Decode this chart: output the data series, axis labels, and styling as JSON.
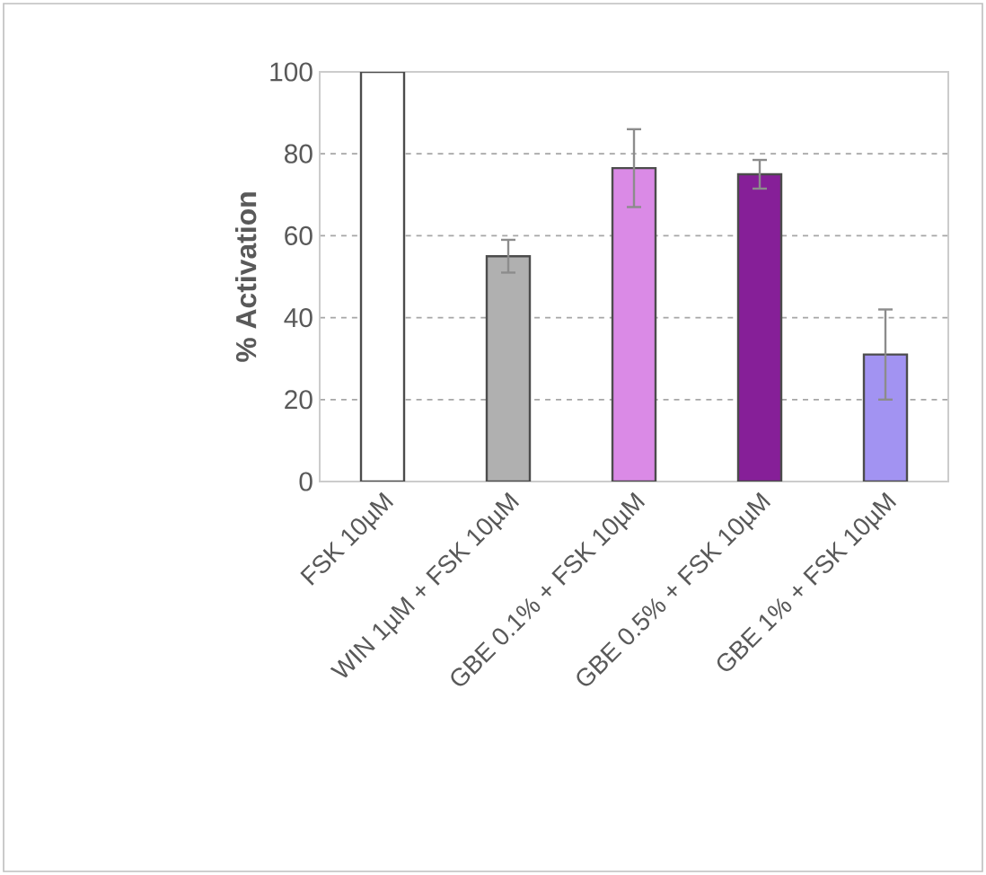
{
  "chart_data": {
    "type": "bar",
    "ylabel": "% Activation",
    "categories": [
      "FSK 10µM",
      "WIN 1µM + FSK 10µM",
      "GBE 0.1% + FSK 10µM",
      "GBE 0.5% + FSK 10µM",
      "GBE 1% + FSK 10µM"
    ],
    "values": [
      100,
      55,
      76.5,
      75,
      31
    ],
    "colors": [
      "#ffffff",
      "#b0b0b0",
      "#da8ae6",
      "#861f98",
      "#a293f2"
    ],
    "errors": [
      null,
      4,
      9.5,
      3.5,
      11
    ],
    "ylim": [
      0,
      100
    ],
    "yticks": [
      0,
      20,
      40,
      60,
      80,
      100
    ],
    "grid": "y"
  }
}
